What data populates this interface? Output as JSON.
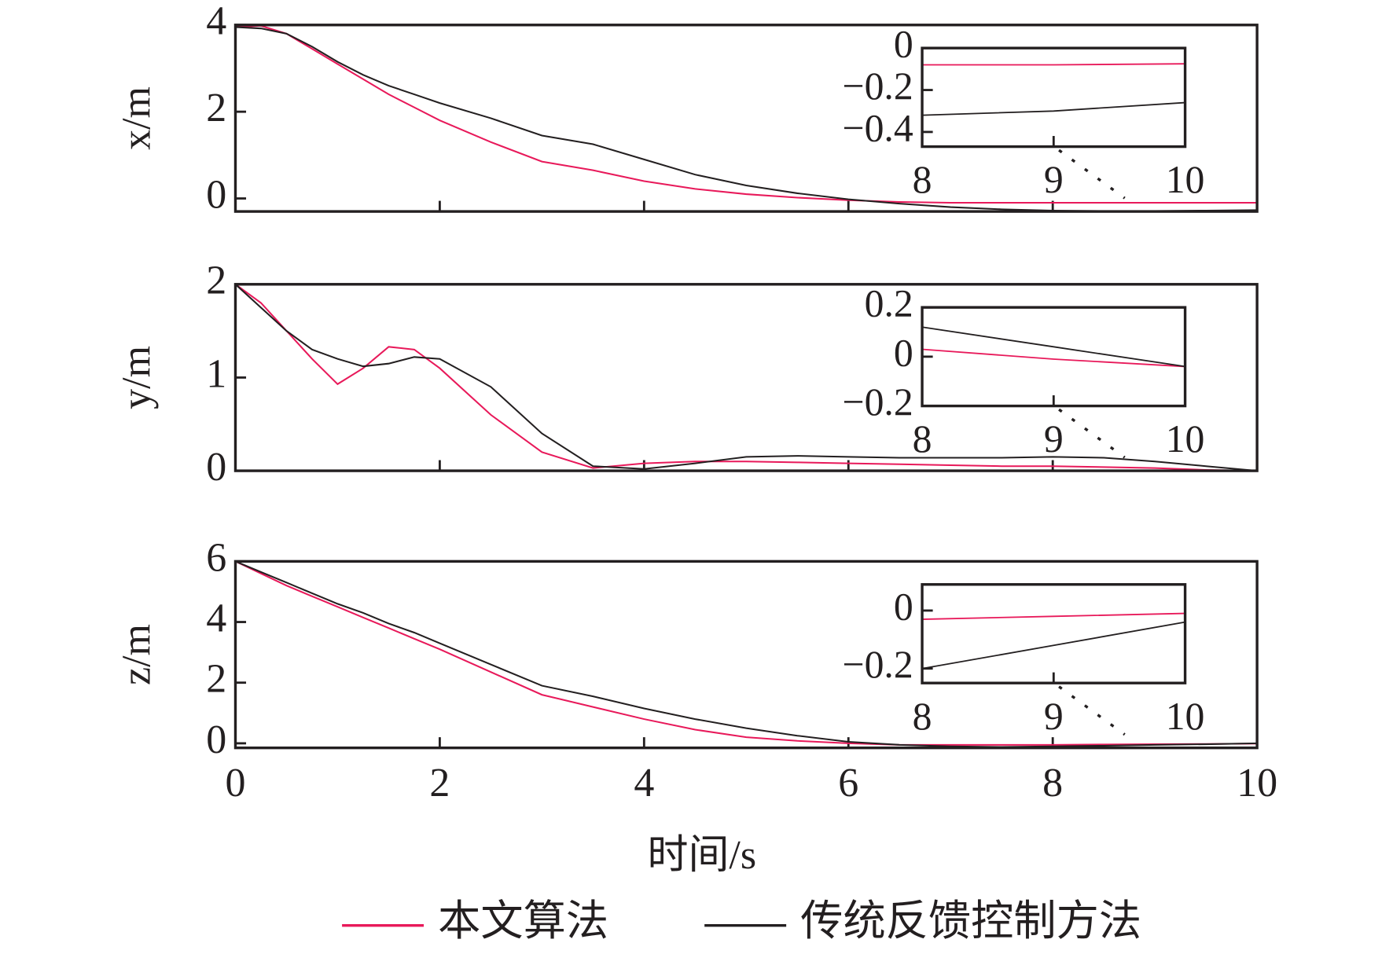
{
  "chart_data": [
    {
      "type": "line",
      "ylabel": "x/m",
      "x": [
        0,
        0.25,
        0.5,
        0.75,
        1,
        1.25,
        1.5,
        1.75,
        2,
        2.5,
        3,
        3.5,
        4,
        4.5,
        5,
        5.5,
        6,
        6.5,
        7,
        7.5,
        8,
        8.5,
        9,
        9.5,
        10
      ],
      "series": [
        {
          "name": "本文算法",
          "color": "#e8195a",
          "values": [
            3.95,
            3.98,
            3.8,
            3.45,
            3.1,
            2.75,
            2.4,
            2.1,
            1.8,
            1.3,
            0.85,
            0.65,
            0.4,
            0.22,
            0.1,
            0.02,
            -0.04,
            -0.08,
            -0.1,
            -0.1,
            -0.1,
            -0.1,
            -0.1,
            -0.1,
            -0.1
          ]
        },
        {
          "name": "传统反馈控制方法",
          "color": "#231f20",
          "values": [
            3.95,
            3.92,
            3.8,
            3.5,
            3.15,
            2.85,
            2.6,
            2.4,
            2.2,
            1.85,
            1.45,
            1.25,
            0.9,
            0.55,
            0.3,
            0.12,
            -0.02,
            -0.12,
            -0.2,
            -0.25,
            -0.28,
            -0.29,
            -0.29,
            -0.28,
            -0.27
          ]
        }
      ],
      "xlim": [
        0,
        10
      ],
      "ylim": [
        -0.3,
        4
      ],
      "yticks": [
        0,
        2,
        4
      ],
      "inset": {
        "type": "line",
        "x": [
          8,
          9,
          10
        ],
        "series": [
          {
            "name": "本文算法",
            "color": "#e8195a",
            "values": [
              -0.08,
              -0.08,
              -0.075
            ]
          },
          {
            "name": "传统反馈控制方法",
            "color": "#231f20",
            "values": [
              -0.32,
              -0.3,
              -0.26
            ]
          }
        ],
        "xlim": [
          8,
          10
        ],
        "ylim": [
          -0.47,
          0
        ],
        "xticks": [
          8,
          9,
          10
        ],
        "yticks": [
          0,
          {
            "value": -0.2,
            "label": "−0.2"
          },
          {
            "value": -0.4,
            "label": "−0.4"
          }
        ]
      }
    },
    {
      "type": "line",
      "ylabel": "y/m",
      "x": [
        0,
        0.25,
        0.5,
        0.75,
        1,
        1.25,
        1.5,
        1.75,
        2,
        2.5,
        3,
        3.5,
        4,
        4.5,
        5,
        5.5,
        6,
        6.5,
        7,
        7.5,
        8,
        8.5,
        9,
        9.5,
        10
      ],
      "series": [
        {
          "name": "本文算法",
          "color": "#e8195a",
          "values": [
            2,
            1.8,
            1.5,
            1.2,
            0.93,
            1.1,
            1.33,
            1.3,
            1.1,
            0.6,
            0.2,
            0.03,
            0.08,
            0.1,
            0.1,
            0.09,
            0.08,
            0.07,
            0.06,
            0.05,
            0.05,
            0.04,
            0.03,
            0.01,
            0
          ]
        },
        {
          "name": "传统反馈控制方法",
          "color": "#231f20",
          "values": [
            2,
            1.75,
            1.5,
            1.3,
            1.2,
            1.12,
            1.15,
            1.22,
            1.2,
            0.9,
            0.4,
            0.05,
            0.02,
            0.08,
            0.15,
            0.16,
            0.15,
            0.14,
            0.14,
            0.14,
            0.15,
            0.14,
            0.1,
            0.05,
            0
          ]
        }
      ],
      "xlim": [
        0,
        10
      ],
      "ylim": [
        0,
        2
      ],
      "yticks": [
        0,
        1,
        2
      ],
      "inset": {
        "type": "line",
        "x": [
          8,
          9,
          10
        ],
        "series": [
          {
            "name": "本文算法",
            "color": "#e8195a",
            "values": [
              0.03,
              -0.01,
              -0.04
            ]
          },
          {
            "name": "传统反馈控制方法",
            "color": "#231f20",
            "values": [
              0.12,
              0.04,
              -0.04
            ]
          }
        ],
        "xlim": [
          8,
          10
        ],
        "ylim": [
          -0.2,
          0.2
        ],
        "xticks": [
          8,
          9,
          10
        ],
        "yticks": [
          0.2,
          0,
          {
            "value": -0.2,
            "label": "−0.2"
          }
        ]
      }
    },
    {
      "type": "line",
      "ylabel": "z/m",
      "xlabel": "时间/s",
      "x": [
        0,
        0.25,
        0.5,
        0.75,
        1,
        1.25,
        1.5,
        1.75,
        2,
        2.5,
        3,
        3.5,
        4,
        4.5,
        5,
        5.5,
        6,
        6.5,
        7,
        7.5,
        8,
        8.5,
        9,
        9.5,
        10
      ],
      "series": [
        {
          "name": "本文算法",
          "color": "#e8195a",
          "values": [
            6,
            5.6,
            5.2,
            4.85,
            4.5,
            4.15,
            3.8,
            3.45,
            3.1,
            2.35,
            1.6,
            1.2,
            0.8,
            0.45,
            0.2,
            0.08,
            0,
            -0.05,
            -0.05,
            -0.05,
            -0.05,
            -0.04,
            -0.03,
            -0.02,
            -0.01
          ]
        },
        {
          "name": "传统反馈控制方法",
          "color": "#231f20",
          "values": [
            6,
            5.65,
            5.3,
            4.95,
            4.6,
            4.3,
            3.95,
            3.65,
            3.3,
            2.6,
            1.9,
            1.55,
            1.15,
            0.8,
            0.5,
            0.25,
            0.05,
            -0.05,
            -0.1,
            -0.12,
            -0.1,
            -0.08,
            -0.05,
            -0.03,
            0
          ]
        }
      ],
      "xlim": [
        0,
        10
      ],
      "ylim": [
        -0.15,
        6
      ],
      "xticks": [
        0,
        2,
        4,
        6,
        8,
        10
      ],
      "yticks": [
        0,
        2,
        4,
        6
      ],
      "inset": {
        "type": "line",
        "x": [
          8,
          9,
          10
        ],
        "series": [
          {
            "name": "本文算法",
            "color": "#e8195a",
            "values": [
              -0.03,
              -0.02,
              -0.01
            ]
          },
          {
            "name": "传统反馈控制方法",
            "color": "#231f20",
            "values": [
              -0.2,
              -0.12,
              -0.04
            ]
          }
        ],
        "xlim": [
          8,
          10
        ],
        "ylim": [
          -0.25,
          0.09
        ],
        "xticks": [
          8,
          9,
          10
        ],
        "yticks": [
          0,
          {
            "value": -0.2,
            "label": "−0.2"
          }
        ]
      }
    }
  ]
}
